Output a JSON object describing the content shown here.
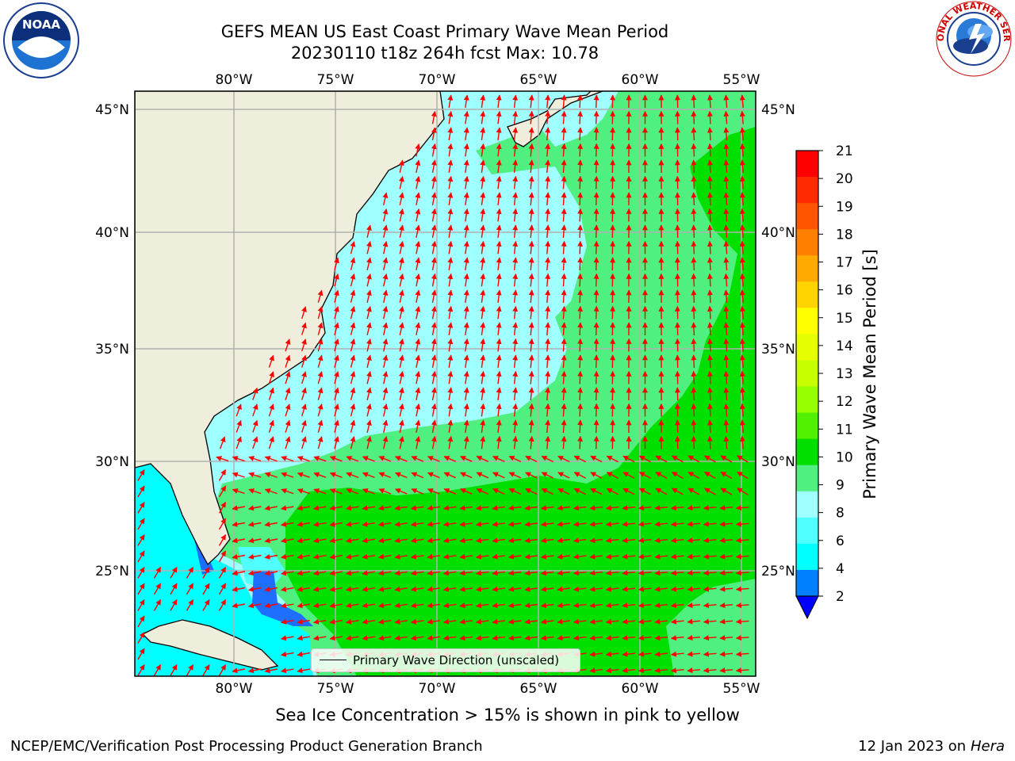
{
  "header": {
    "title_line1": "GEFS MEAN US East Coast Primary Wave Mean Period",
    "title_line2": "20230110 t18z 264h fcst   Max: 10.78"
  },
  "logos": {
    "left": {
      "name": "noaa-logo",
      "text": "NOAA",
      "ring_text": "NATIONAL OCEANIC AND ATMOSPHERIC ADMINISTRATION · U.S. DEPARTMENT OF COMMERCE"
    },
    "right": {
      "name": "nws-logo",
      "ring_text": "NATIONAL WEATHER SERVICE"
    }
  },
  "map": {
    "lon_labels": [
      "80°W",
      "75°W",
      "70°W",
      "65°W",
      "60°W",
      "55°W"
    ],
    "lat_labels": [
      "45°N",
      "40°N",
      "35°N",
      "30°N",
      "25°N"
    ],
    "colors": {
      "land": "#efeedc",
      "coast": "#000000",
      "grid": "#b0b0b0",
      "arrow": "#ff0000"
    }
  },
  "colorbar": {
    "label": "Primary Wave Mean Period [s]",
    "ticks": [
      "21",
      "20",
      "19",
      "18",
      "17",
      "16",
      "15",
      "14",
      "13",
      "12",
      "11",
      "10",
      "9",
      "8",
      "6",
      "4",
      "2"
    ],
    "colors_top_to_bottom": [
      "#ff0000",
      "#ff2a00",
      "#ff5500",
      "#ff8000",
      "#ffaa00",
      "#ffd400",
      "#ffff00",
      "#e6ff00",
      "#c8ff00",
      "#96ff00",
      "#50f000",
      "#00e000",
      "#50f080",
      "#a0ffff",
      "#50ffff",
      "#00ffff",
      "#0080ff"
    ],
    "extend_color": "#0000ff"
  },
  "legend": {
    "text": "Primary Wave Direction (unscaled)"
  },
  "subtitle": "Sea Ice Concentration > 15% is shown in pink to yellow",
  "footer": {
    "left": "NCEP/EMC/Verification Post Processing Product Generation Branch",
    "right_prefix": "12 Jan 2023 on ",
    "right_host": "Hera"
  }
}
